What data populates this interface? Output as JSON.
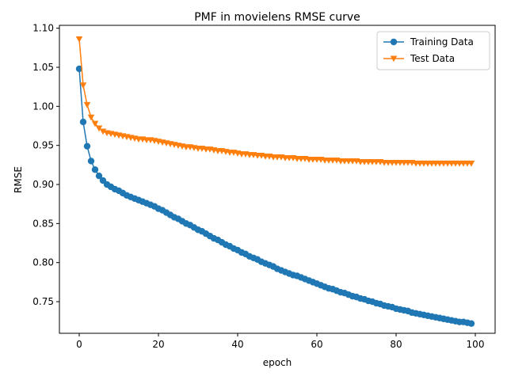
{
  "chart_data": {
    "type": "line",
    "title": "PMF in movielens RMSE curve",
    "xlabel": "epoch",
    "ylabel": "RMSE",
    "xlim": [
      -5,
      105
    ],
    "ylim": [
      0.7095,
      1.1037
    ],
    "xticks": [
      0,
      20,
      40,
      60,
      80,
      100
    ],
    "yticks": [
      0.75,
      0.8,
      0.85,
      0.9,
      0.95,
      1.0,
      1.05,
      1.1
    ],
    "grid": false,
    "legend": "top-right",
    "x": [
      0,
      1,
      2,
      3,
      4,
      5,
      6,
      7,
      8,
      9,
      10,
      11,
      12,
      13,
      14,
      15,
      16,
      17,
      18,
      19,
      20,
      21,
      22,
      23,
      24,
      25,
      26,
      27,
      28,
      29,
      30,
      31,
      32,
      33,
      34,
      35,
      36,
      37,
      38,
      39,
      40,
      41,
      42,
      43,
      44,
      45,
      46,
      47,
      48,
      49,
      50,
      51,
      52,
      53,
      54,
      55,
      56,
      57,
      58,
      59,
      60,
      61,
      62,
      63,
      64,
      65,
      66,
      67,
      68,
      69,
      70,
      71,
      72,
      73,
      74,
      75,
      76,
      77,
      78,
      79,
      80,
      81,
      82,
      83,
      84,
      85,
      86,
      87,
      88,
      89,
      90,
      91,
      92,
      93,
      94,
      95,
      96,
      97,
      98,
      99
    ],
    "series": [
      {
        "name": "Training Data",
        "color": "#1f77b4",
        "marker": "circle",
        "values": [
          1.048,
          0.98,
          0.949,
          0.93,
          0.919,
          0.911,
          0.905,
          0.9,
          0.897,
          0.894,
          0.892,
          0.889,
          0.886,
          0.884,
          0.882,
          0.88,
          0.878,
          0.876,
          0.874,
          0.872,
          0.869,
          0.867,
          0.864,
          0.861,
          0.858,
          0.856,
          0.853,
          0.85,
          0.848,
          0.845,
          0.842,
          0.84,
          0.837,
          0.834,
          0.831,
          0.829,
          0.826,
          0.823,
          0.821,
          0.818,
          0.816,
          0.813,
          0.811,
          0.808,
          0.806,
          0.804,
          0.801,
          0.799,
          0.797,
          0.795,
          0.792,
          0.79,
          0.788,
          0.786,
          0.784,
          0.783,
          0.781,
          0.779,
          0.777,
          0.775,
          0.773,
          0.771,
          0.769,
          0.767,
          0.766,
          0.764,
          0.762,
          0.761,
          0.759,
          0.757,
          0.756,
          0.754,
          0.753,
          0.751,
          0.75,
          0.748,
          0.747,
          0.745,
          0.744,
          0.743,
          0.741,
          0.74,
          0.739,
          0.738,
          0.736,
          0.735,
          0.734,
          0.733,
          0.732,
          0.731,
          0.73,
          0.729,
          0.728,
          0.727,
          0.726,
          0.725,
          0.724,
          0.724,
          0.723,
          0.722
        ]
      },
      {
        "name": "Test Data",
        "color": "#ff7f0e",
        "marker": "triangle-down",
        "values": [
          1.086,
          1.027,
          1.002,
          0.986,
          0.978,
          0.972,
          0.968,
          0.966,
          0.965,
          0.964,
          0.963,
          0.962,
          0.961,
          0.96,
          0.959,
          0.958,
          0.958,
          0.957,
          0.957,
          0.956,
          0.955,
          0.954,
          0.953,
          0.952,
          0.951,
          0.95,
          0.949,
          0.948,
          0.948,
          0.947,
          0.946,
          0.946,
          0.945,
          0.945,
          0.944,
          0.943,
          0.943,
          0.942,
          0.941,
          0.941,
          0.94,
          0.939,
          0.939,
          0.938,
          0.938,
          0.937,
          0.937,
          0.936,
          0.936,
          0.935,
          0.935,
          0.935,
          0.934,
          0.934,
          0.934,
          0.933,
          0.933,
          0.933,
          0.932,
          0.932,
          0.932,
          0.932,
          0.931,
          0.931,
          0.931,
          0.931,
          0.93,
          0.93,
          0.93,
          0.93,
          0.93,
          0.929,
          0.929,
          0.929,
          0.929,
          0.929,
          0.929,
          0.928,
          0.928,
          0.928,
          0.928,
          0.928,
          0.928,
          0.928,
          0.928,
          0.927,
          0.927,
          0.927,
          0.927,
          0.927,
          0.927,
          0.927,
          0.927,
          0.927,
          0.927,
          0.927,
          0.927,
          0.927,
          0.927,
          0.927
        ]
      }
    ]
  }
}
